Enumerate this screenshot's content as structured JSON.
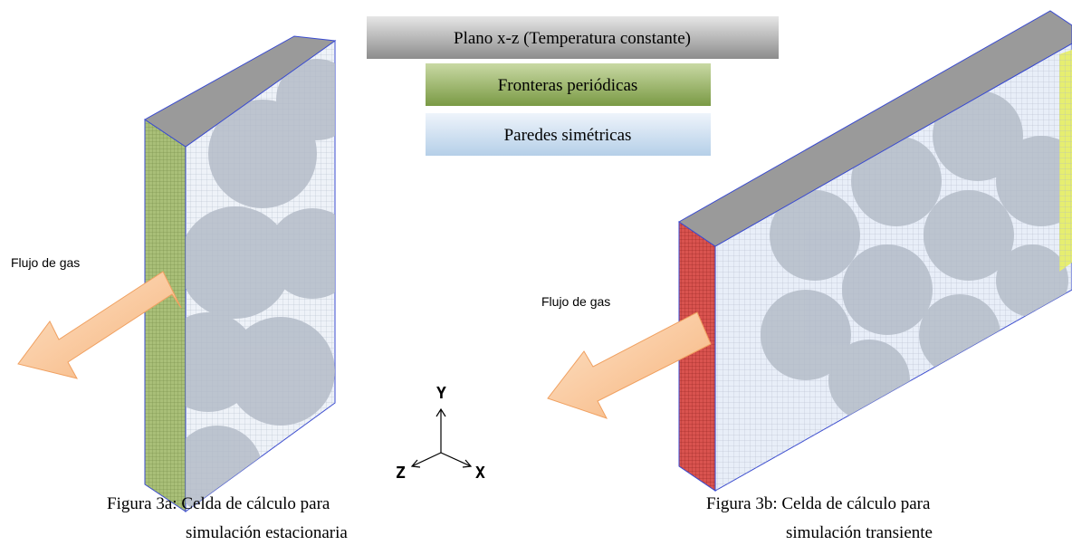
{
  "legend": [
    "Plano x-z (Temperatura constante)",
    "Fronteras periódicas",
    "Paredes simétricas"
  ],
  "figures": [
    {
      "flow_label": "Flujo de gas",
      "caption": [
        "Figura 3a: Celda de cálculo para",
        "simulación estacionaria"
      ]
    },
    {
      "flow_label": "Flujo de gas",
      "caption": [
        "Figura 3b: Celda de cálculo para",
        "simulación transiente"
      ]
    }
  ],
  "axes": {
    "y": "Y",
    "z": "Z",
    "x": "X"
  }
}
